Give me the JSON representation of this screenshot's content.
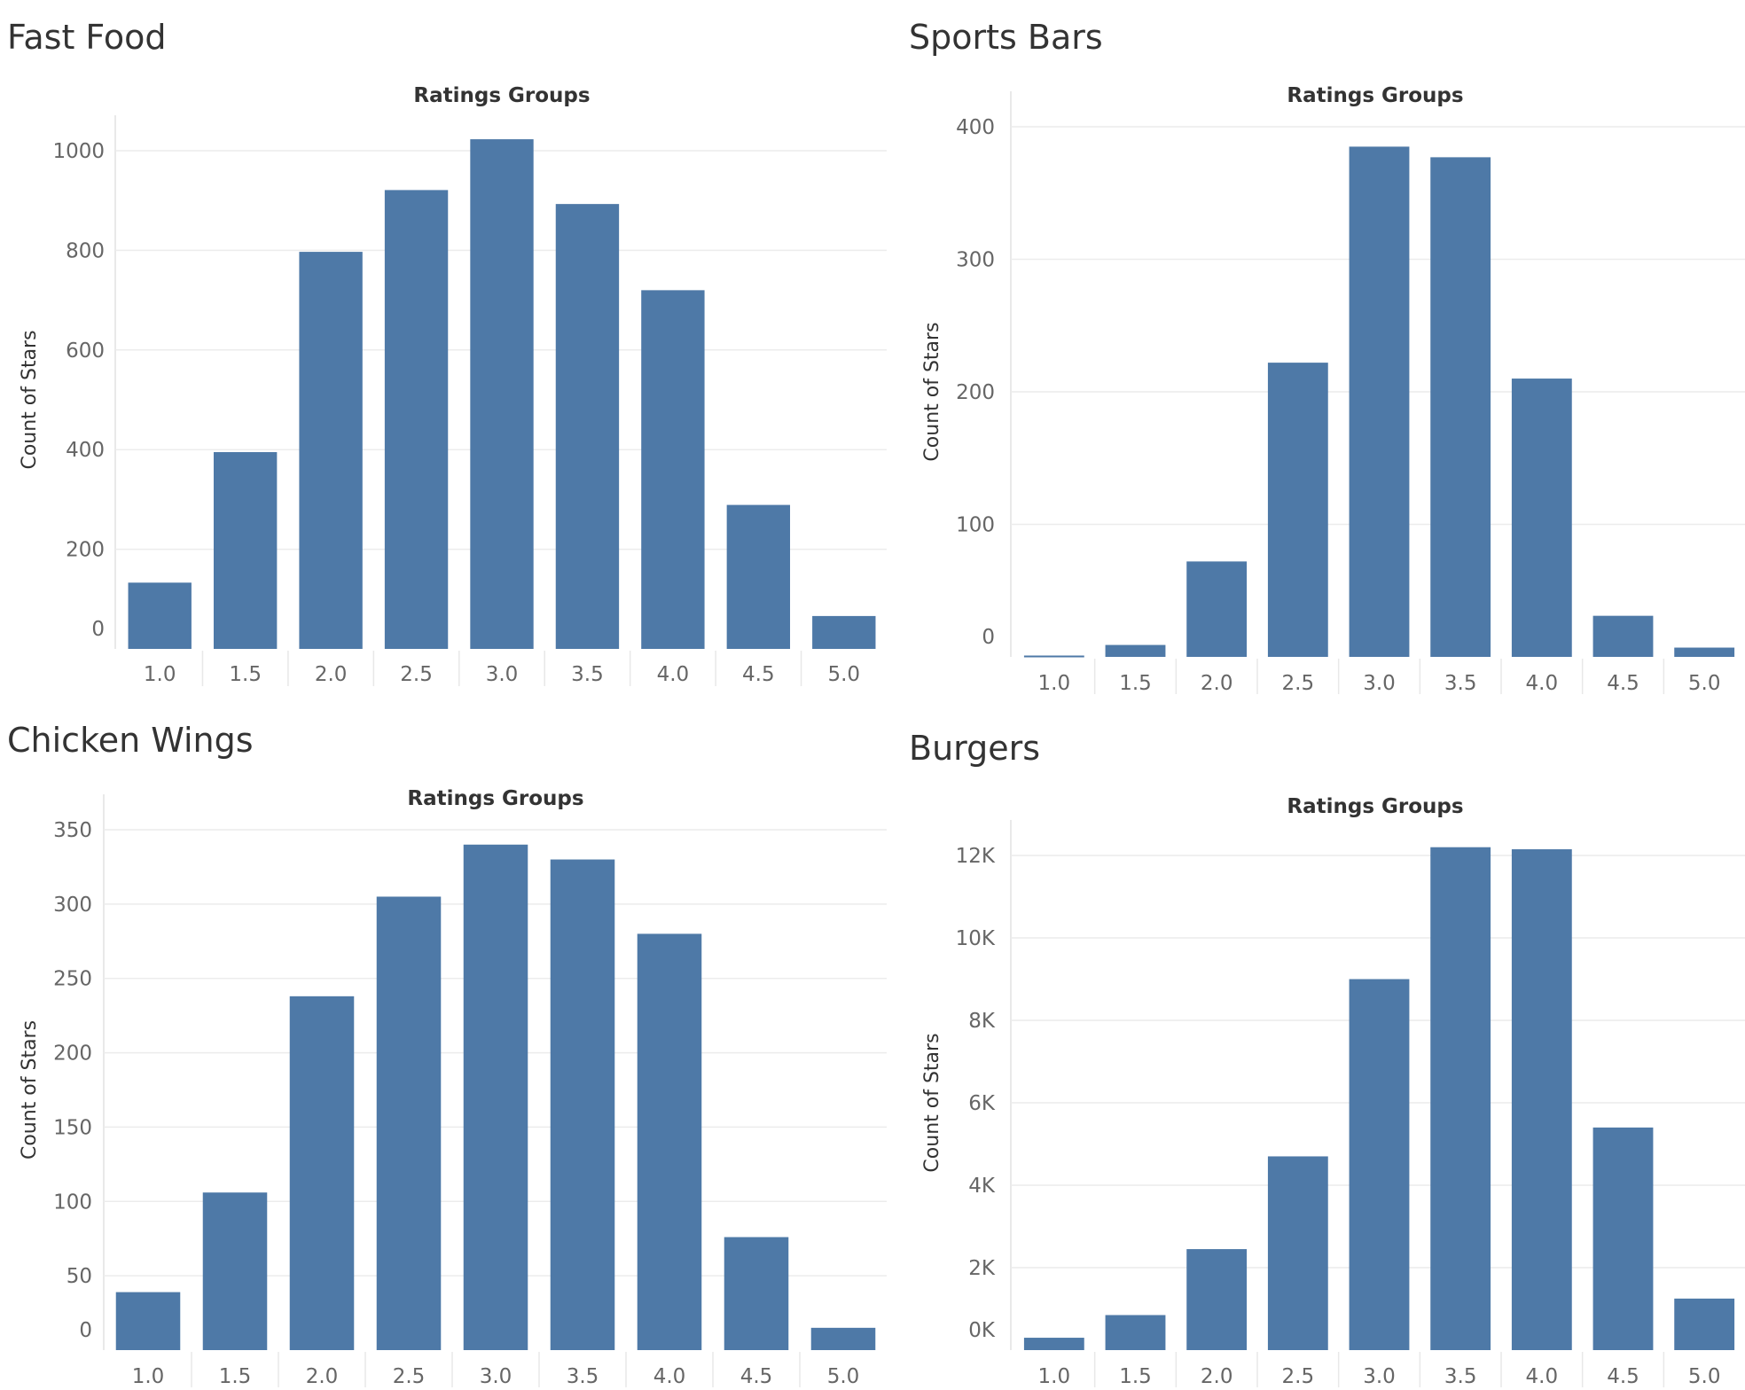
{
  "colors": {
    "bar": "#4e79a7"
  },
  "chart_data": [
    {
      "type": "bar",
      "title": "Fast Food",
      "xlabel": "Ratings Groups",
      "ylabel": "Count of Stars",
      "categories": [
        "1.0",
        "1.5",
        "2.0",
        "2.5",
        "3.0",
        "3.5",
        "4.0",
        "4.5",
        "5.0"
      ],
      "values": [
        133,
        395,
        797,
        921,
        1023,
        893,
        720,
        289,
        66
      ],
      "ylim": [
        0,
        1000
      ],
      "yticks": [
        0,
        200,
        400,
        600,
        800,
        1000
      ],
      "ytick_labels": [
        "0",
        "200",
        "400",
        "600",
        "800",
        "1000"
      ]
    },
    {
      "type": "bar",
      "title": "Sports Bars",
      "xlabel": "Ratings Groups",
      "ylabel": "Count of Stars",
      "categories": [
        "1.0",
        "1.5",
        "2.0",
        "2.5",
        "3.0",
        "3.5",
        "4.0",
        "4.5",
        "5.0"
      ],
      "values": [
        1,
        9,
        72,
        222,
        385,
        377,
        210,
        31,
        7
      ],
      "ylim": [
        0,
        400
      ],
      "yticks": [
        0,
        100,
        200,
        300,
        400
      ],
      "ytick_labels": [
        "0",
        "100",
        "200",
        "300",
        "400"
      ]
    },
    {
      "type": "bar",
      "title": "Chicken Wings",
      "xlabel": "Ratings Groups",
      "ylabel": "Count of Stars",
      "categories": [
        "1.0",
        "1.5",
        "2.0",
        "2.5",
        "3.0",
        "3.5",
        "4.0",
        "4.5",
        "5.0"
      ],
      "values": [
        39,
        106,
        238,
        305,
        340,
        330,
        280,
        76,
        15
      ],
      "ylim": [
        0,
        350
      ],
      "yticks": [
        0,
        50,
        100,
        150,
        200,
        250,
        300,
        350
      ],
      "ytick_labels": [
        "0",
        "50",
        "100",
        "150",
        "200",
        "250",
        "300",
        "350"
      ]
    },
    {
      "type": "bar",
      "title": "Burgers",
      "xlabel": "Ratings Groups",
      "ylabel": "Count of Stars",
      "categories": [
        "1.0",
        "1.5",
        "2.0",
        "2.5",
        "3.0",
        "3.5",
        "4.0",
        "4.5",
        "5.0"
      ],
      "values": [
        300,
        850,
        2450,
        4700,
        9000,
        12200,
        12150,
        5400,
        1250
      ],
      "ylim": [
        0,
        12000
      ],
      "yticks": [
        0,
        2000,
        4000,
        6000,
        8000,
        10000,
        12000
      ],
      "ytick_labels": [
        "0K",
        "2K",
        "4K",
        "6K",
        "8K",
        "10K",
        "12K"
      ]
    }
  ]
}
